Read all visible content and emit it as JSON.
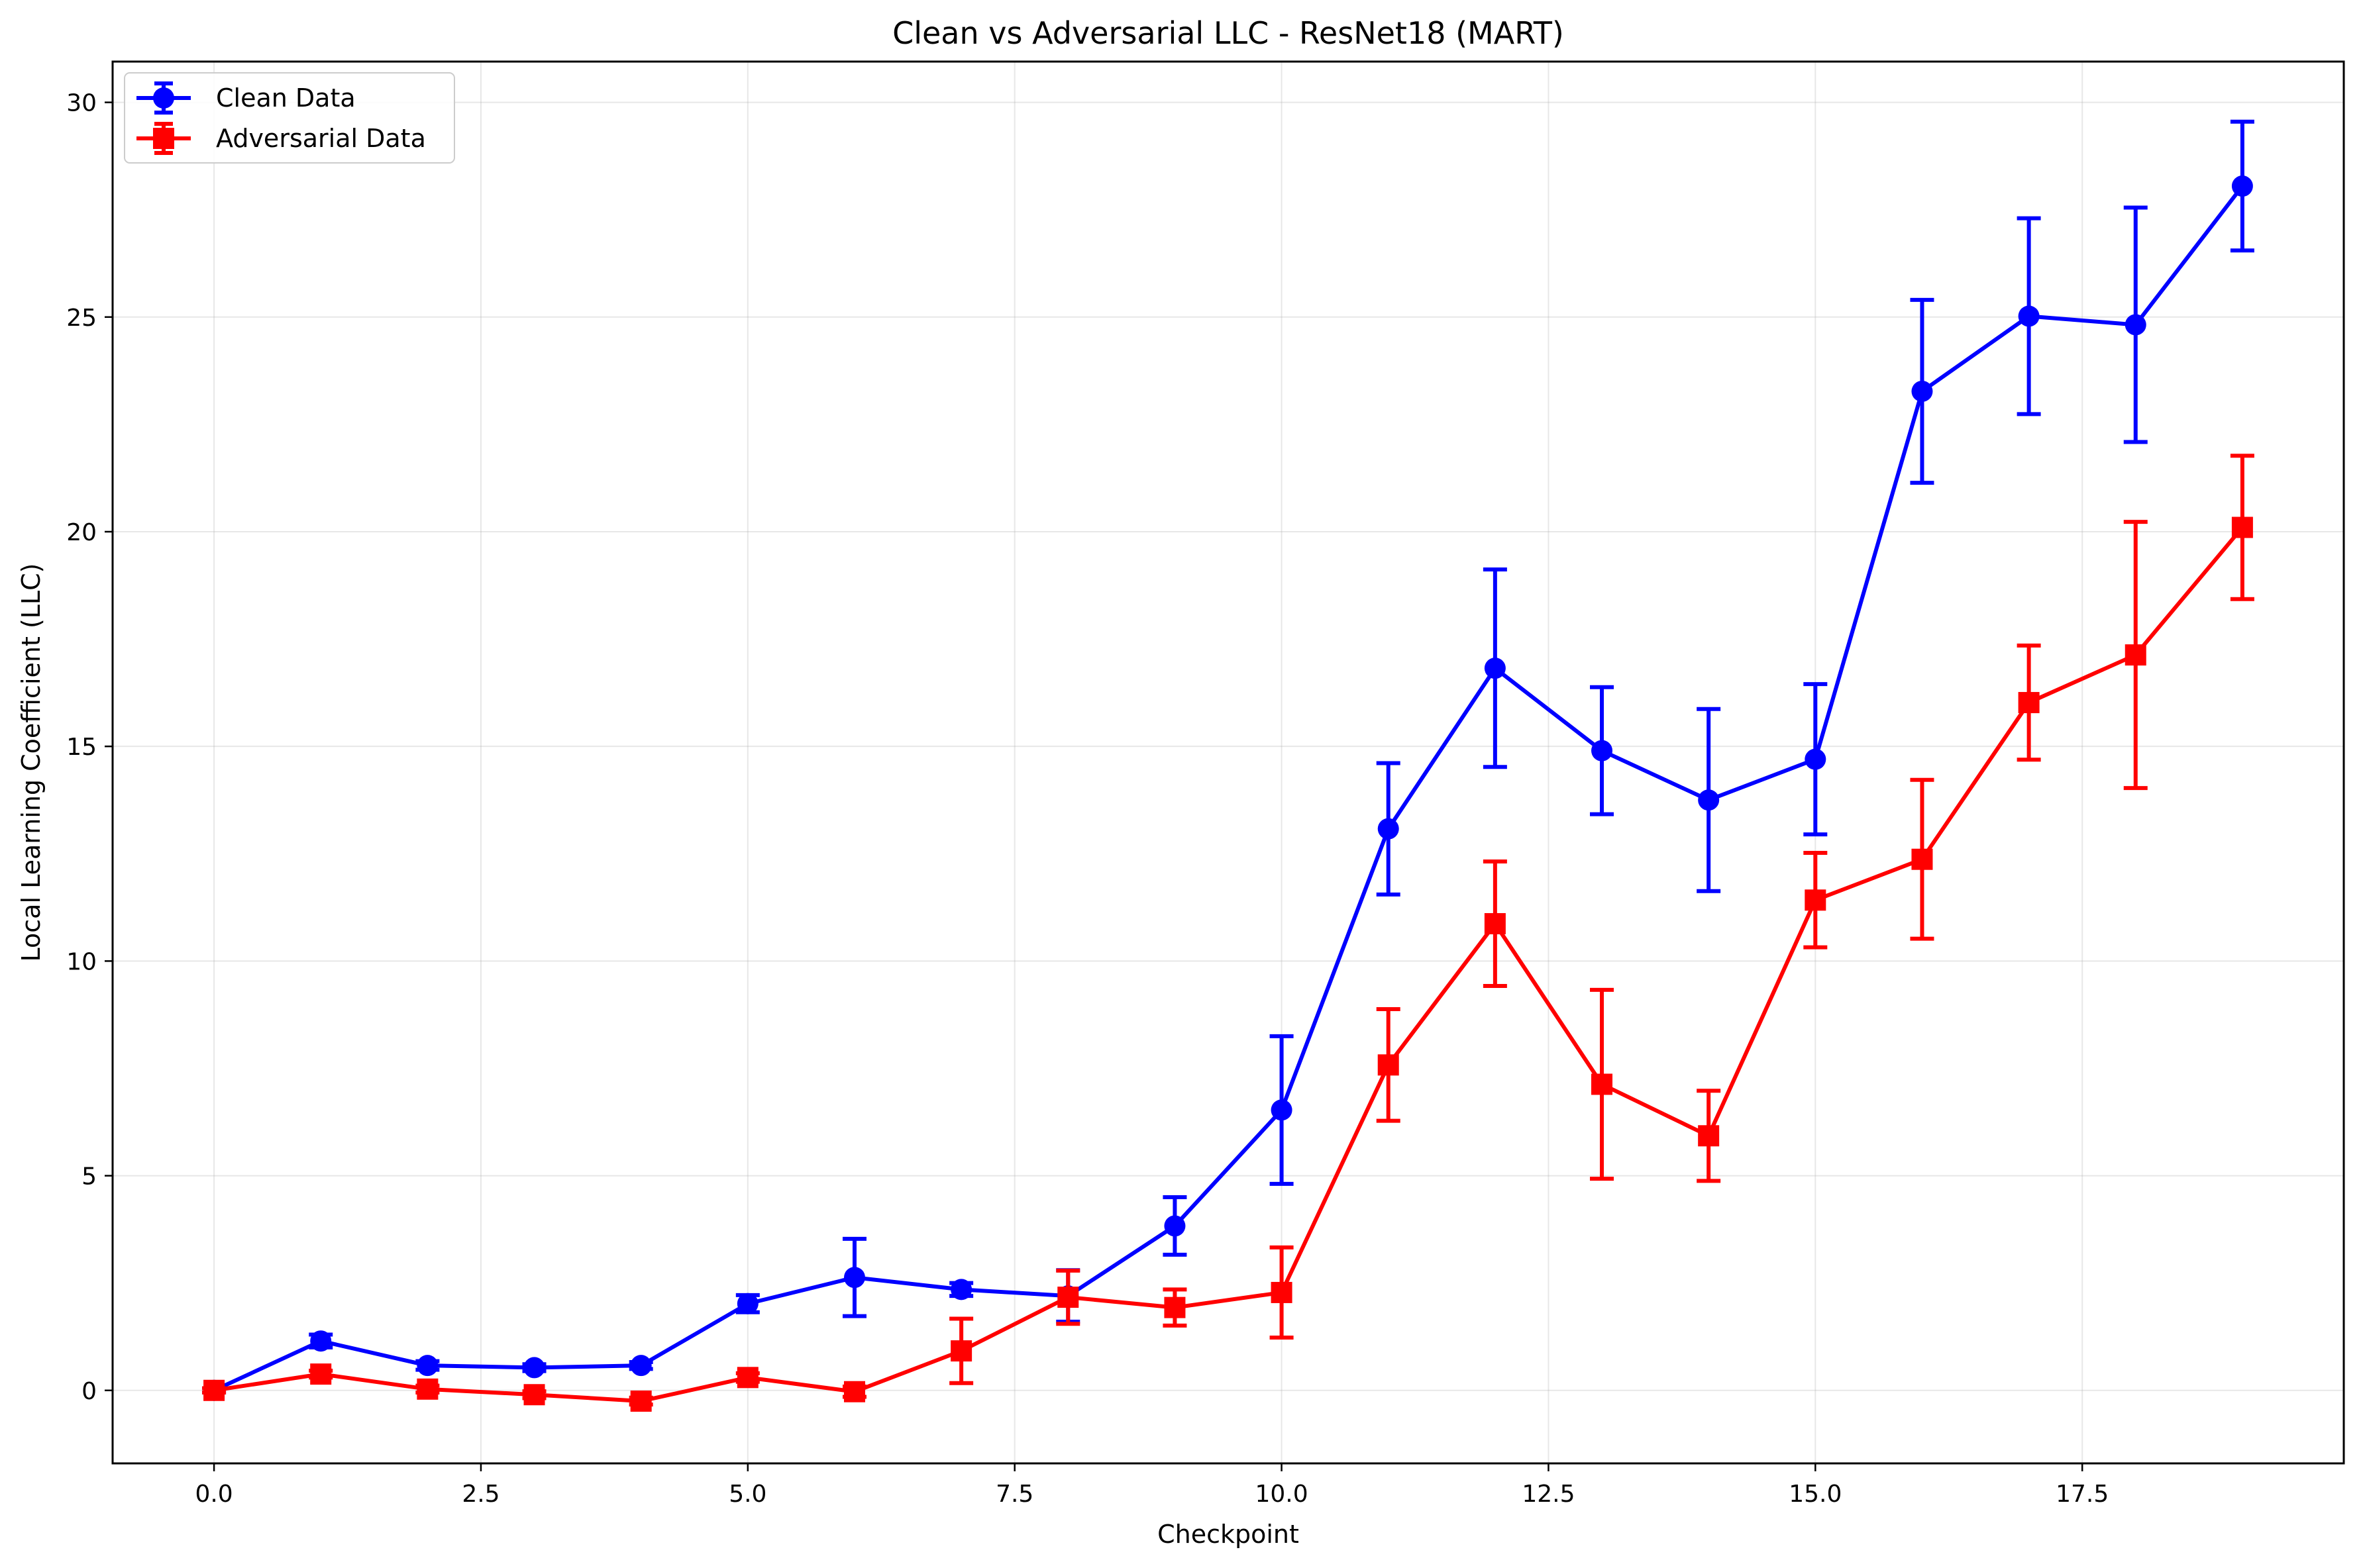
{
  "chart_data": {
    "type": "line",
    "title": "Clean vs Adversarial LLC - ResNet18 (MART)",
    "xlabel": "Checkpoint",
    "ylabel": "Local Learning Coefficient (LLC)",
    "xlim": [
      -0.95,
      19.95
    ],
    "ylim": [
      -1.7,
      30.95
    ],
    "x_ticks": [
      0.0,
      2.5,
      5.0,
      7.5,
      10.0,
      12.5,
      15.0,
      17.5
    ],
    "x_tick_labels": [
      "0.0",
      "2.5",
      "5.0",
      "7.5",
      "10.0",
      "12.5",
      "15.0",
      "17.5"
    ],
    "y_ticks": [
      0,
      5,
      10,
      15,
      20,
      25,
      30
    ],
    "y_tick_labels": [
      "0",
      "5",
      "10",
      "15",
      "20",
      "25",
      "30"
    ],
    "grid": true,
    "legend_position": "top-left",
    "x": [
      0,
      1,
      2,
      3,
      4,
      5,
      6,
      7,
      8,
      9,
      10,
      11,
      12,
      13,
      14,
      15,
      16,
      17,
      18,
      19
    ],
    "series": [
      {
        "name": "Clean Data",
        "color": "#0000ff",
        "marker": "circle",
        "values": [
          0.0,
          1.15,
          0.58,
          0.53,
          0.58,
          2.02,
          2.63,
          2.35,
          2.2,
          3.83,
          6.53,
          13.08,
          16.82,
          14.9,
          13.75,
          14.7,
          23.27,
          25.02,
          24.82,
          28.05
        ],
        "errors": [
          0.05,
          0.15,
          0.1,
          0.08,
          0.08,
          0.2,
          0.9,
          0.15,
          0.6,
          0.67,
          1.72,
          1.53,
          2.3,
          1.48,
          2.12,
          1.75,
          2.13,
          2.28,
          2.73,
          1.5
        ]
      },
      {
        "name": "Adversarial Data",
        "color": "#ff0000",
        "marker": "square",
        "values": [
          0.0,
          0.38,
          0.03,
          -0.1,
          -0.25,
          0.3,
          -0.03,
          0.92,
          2.17,
          1.93,
          2.28,
          7.58,
          10.87,
          7.13,
          5.93,
          11.42,
          12.37,
          16.02,
          17.13,
          20.1
        ],
        "errors": [
          0.05,
          0.08,
          0.08,
          0.08,
          0.08,
          0.1,
          0.12,
          0.75,
          0.62,
          0.42,
          1.05,
          1.3,
          1.45,
          2.2,
          1.05,
          1.1,
          1.85,
          1.33,
          3.1,
          1.67
        ]
      }
    ]
  }
}
